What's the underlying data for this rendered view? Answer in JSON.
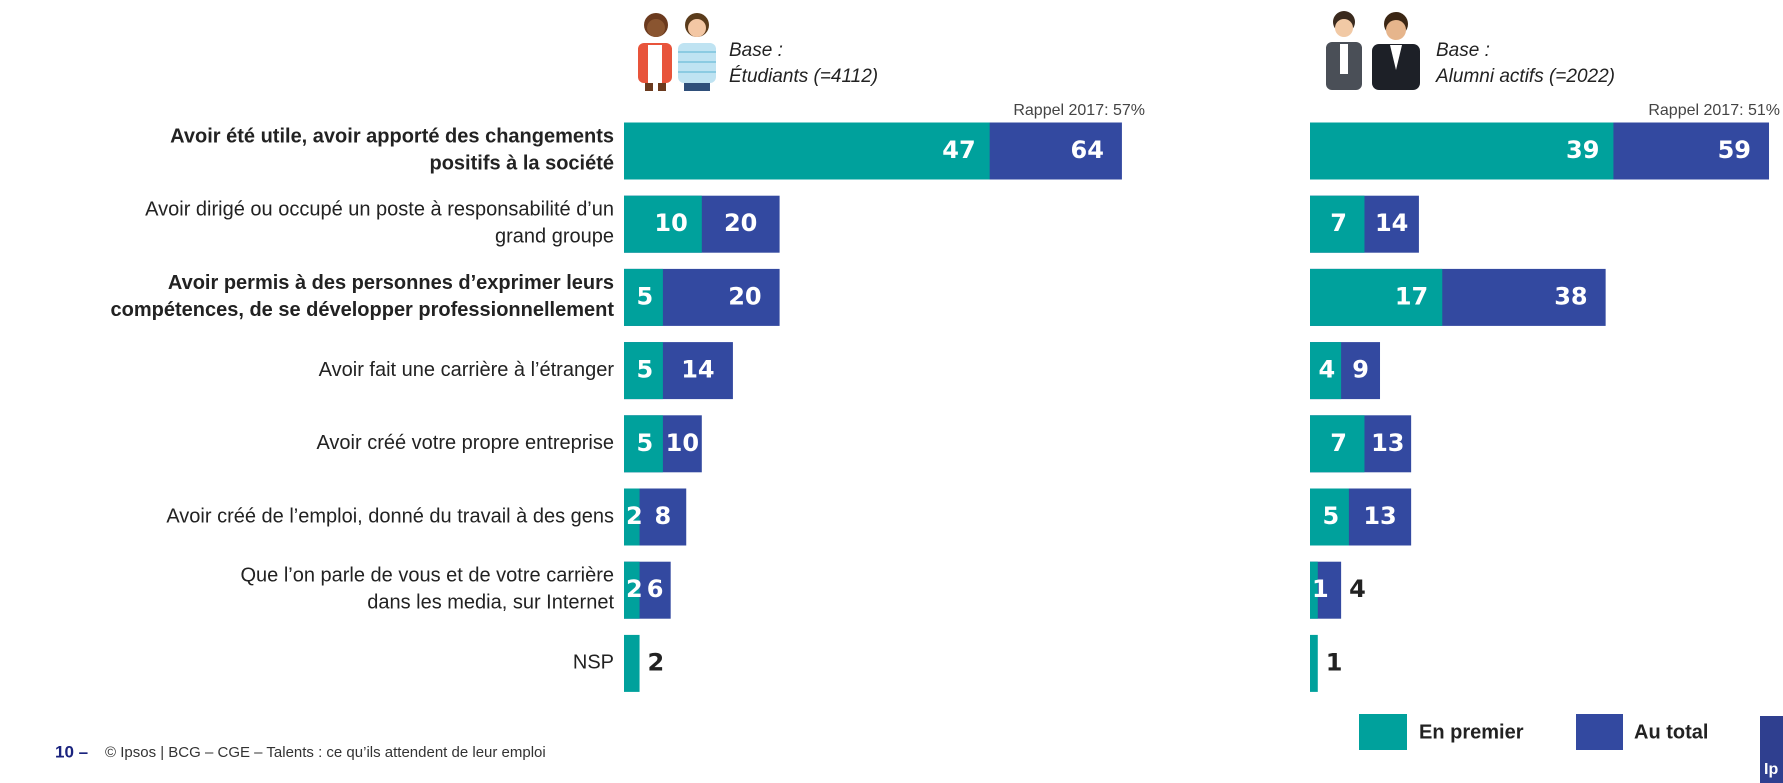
{
  "chart_data": {
    "type": "bar",
    "categories": [
      "Avoir été utile, avoir apporté des changements|positifs à la société",
      "Avoir dirigé ou occupé un poste à responsabilité d’un|grand groupe",
      "Avoir permis à des personnes d’exprimer leurs|compétences, de se développer professionnellement",
      "Avoir fait une carrière à l’étranger",
      "Avoir créé votre propre entreprise",
      "Avoir créé de l’emploi, donné du travail à des gens",
      "Que l’on parle de vous et de votre carrière|dans les media, sur Internet",
      "NSP"
    ],
    "panels": [
      {
        "title": "Base :",
        "subtitle": "Étudiants (=4112)",
        "annotation": "Rappel 2017: 57%",
        "series": [
          {
            "name": "En premier",
            "color": "#00a19c",
            "values": [
              47,
              10,
              5,
              5,
              5,
              2,
              2,
              2
            ]
          },
          {
            "name": "Au total",
            "color": "#3349a0",
            "values": [
              64,
              20,
              20,
              14,
              10,
              8,
              6,
              null
            ]
          }
        ]
      },
      {
        "title": "Base :",
        "subtitle": "Alumni actifs (=2022)",
        "annotation": "Rappel 2017: 51%",
        "series": [
          {
            "color": "#00a19c",
            "values": [
              39,
              7,
              17,
              4,
              7,
              5,
              1,
              1
            ]
          },
          {
            "color": "#3349a0",
            "values": [
              59,
              14,
              38,
              9,
              13,
              13,
              4,
              null
            ]
          }
        ]
      }
    ]
  },
  "footer": {
    "page": "10 –",
    "text": "© Ipsos | BCG – CGE – Talents : ce qu’ils attendent de leur emploi",
    "logo": "Ip"
  }
}
